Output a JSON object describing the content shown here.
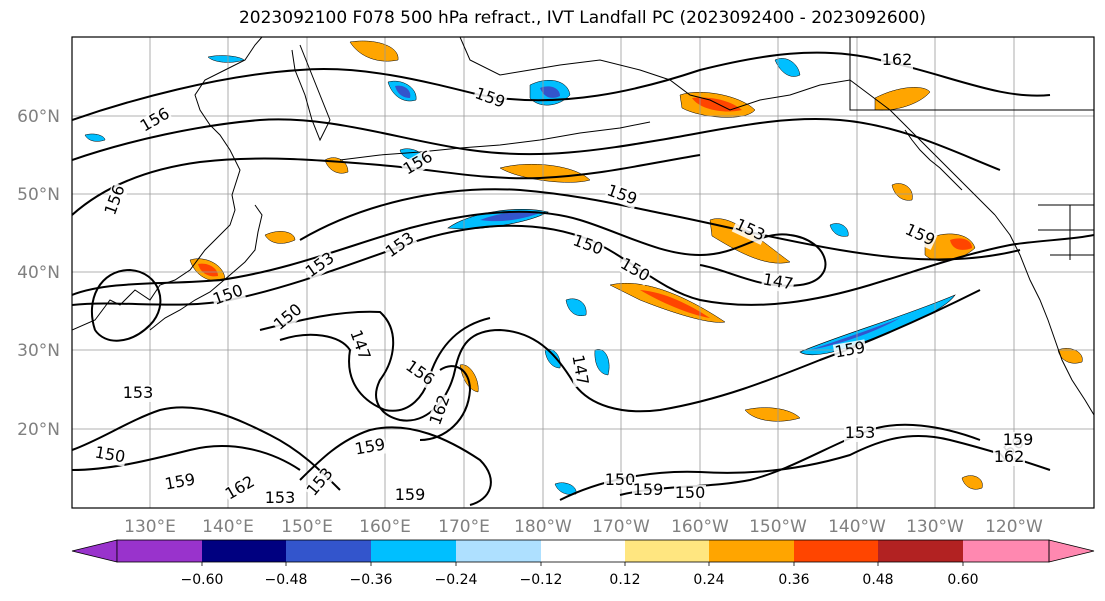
{
  "title": "2023092100 F078 500 hPa refract., IVT Landfall PC (2023092400 - 2023092600)",
  "map": {
    "lon_labels": [
      "130°E",
      "140°E",
      "150°E",
      "160°E",
      "170°E",
      "180°W",
      "170°W",
      "160°W",
      "150°W",
      "140°W",
      "130°W",
      "120°W"
    ],
    "lat_labels": [
      "60°N",
      "50°N",
      "40°N",
      "30°N",
      "20°N"
    ],
    "contour_labels": [
      "156",
      "159",
      "156",
      "156",
      "162",
      "153",
      "150",
      "159",
      "153",
      "159",
      "150",
      "153",
      "150",
      "147",
      "156",
      "162",
      "159",
      "150",
      "159",
      "162",
      "153",
      "159",
      "147",
      "150",
      "153",
      "159",
      "150",
      "159",
      "150",
      "153",
      "147",
      "153",
      "156",
      "159",
      "162"
    ]
  },
  "colorbar": {
    "ticks": [
      "−0.60",
      "−0.48",
      "−0.36",
      "−0.24",
      "−0.12",
      "0.12",
      "0.24",
      "0.36",
      "0.48",
      "0.60"
    ],
    "colors": [
      "#9933cc",
      "#000080",
      "#3355cc",
      "#00bfff",
      "#aee0ff",
      "#ffffff",
      "#ffe680",
      "#ffa500",
      "#ff4500",
      "#b22222",
      "#ff88b0"
    ]
  }
}
